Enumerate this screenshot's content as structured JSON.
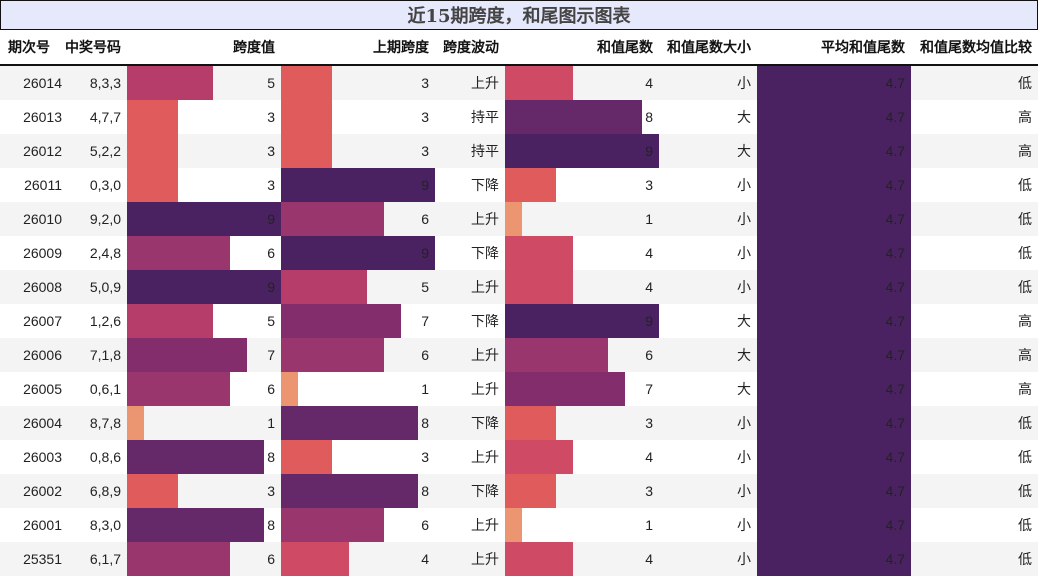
{
  "title": "近15期跨度，和尾图示图表",
  "headers": [
    "期次号",
    "中奖号码",
    "跨度值",
    "上期跨度",
    "跨度波动",
    "和值尾数",
    "和值尾数大小",
    "平均和值尾数",
    "和值尾数均值比较"
  ],
  "bar_max": 9,
  "color_scale": {
    "1": "#eb9670",
    "3": "#e05c5c",
    "4": "#cf4a64",
    "5": "#b63d6a",
    "6": "#9a366e",
    "7": "#832d6d",
    "8": "#65296a",
    "9": "#4b2261"
  },
  "rows": [
    {
      "period": "26014",
      "numbers": "8,3,3",
      "span": 5,
      "prev_span": 3,
      "trend": "上升",
      "tail": 4,
      "tail_size": "小",
      "avg_tail": "4.7",
      "compare": "低"
    },
    {
      "period": "26013",
      "numbers": "4,7,7",
      "span": 3,
      "prev_span": 3,
      "trend": "持平",
      "tail": 8,
      "tail_size": "大",
      "avg_tail": "4.7",
      "compare": "高"
    },
    {
      "period": "26012",
      "numbers": "5,2,2",
      "span": 3,
      "prev_span": 3,
      "trend": "持平",
      "tail": 9,
      "tail_size": "大",
      "avg_tail": "4.7",
      "compare": "高"
    },
    {
      "period": "26011",
      "numbers": "0,3,0",
      "span": 3,
      "prev_span": 9,
      "trend": "下降",
      "tail": 3,
      "tail_size": "小",
      "avg_tail": "4.7",
      "compare": "低"
    },
    {
      "period": "26010",
      "numbers": "9,2,0",
      "span": 9,
      "prev_span": 6,
      "trend": "上升",
      "tail": 1,
      "tail_size": "小",
      "avg_tail": "4.7",
      "compare": "低"
    },
    {
      "period": "26009",
      "numbers": "2,4,8",
      "span": 6,
      "prev_span": 9,
      "trend": "下降",
      "tail": 4,
      "tail_size": "小",
      "avg_tail": "4.7",
      "compare": "低"
    },
    {
      "period": "26008",
      "numbers": "5,0,9",
      "span": 9,
      "prev_span": 5,
      "trend": "上升",
      "tail": 4,
      "tail_size": "小",
      "avg_tail": "4.7",
      "compare": "低"
    },
    {
      "period": "26007",
      "numbers": "1,2,6",
      "span": 5,
      "prev_span": 7,
      "trend": "下降",
      "tail": 9,
      "tail_size": "大",
      "avg_tail": "4.7",
      "compare": "高"
    },
    {
      "period": "26006",
      "numbers": "7,1,8",
      "span": 7,
      "prev_span": 6,
      "trend": "上升",
      "tail": 6,
      "tail_size": "大",
      "avg_tail": "4.7",
      "compare": "高"
    },
    {
      "period": "26005",
      "numbers": "0,6,1",
      "span": 6,
      "prev_span": 1,
      "trend": "上升",
      "tail": 7,
      "tail_size": "大",
      "avg_tail": "4.7",
      "compare": "高"
    },
    {
      "period": "26004",
      "numbers": "8,7,8",
      "span": 1,
      "prev_span": 8,
      "trend": "下降",
      "tail": 3,
      "tail_size": "小",
      "avg_tail": "4.7",
      "compare": "低"
    },
    {
      "period": "26003",
      "numbers": "0,8,6",
      "span": 8,
      "prev_span": 3,
      "trend": "上升",
      "tail": 4,
      "tail_size": "小",
      "avg_tail": "4.7",
      "compare": "低"
    },
    {
      "period": "26002",
      "numbers": "6,8,9",
      "span": 3,
      "prev_span": 8,
      "trend": "下降",
      "tail": 3,
      "tail_size": "小",
      "avg_tail": "4.7",
      "compare": "低"
    },
    {
      "period": "26001",
      "numbers": "8,3,0",
      "span": 8,
      "prev_span": 6,
      "trend": "上升",
      "tail": 1,
      "tail_size": "小",
      "avg_tail": "4.7",
      "compare": "低"
    },
    {
      "period": "25351",
      "numbers": "6,1,7",
      "span": 6,
      "prev_span": 4,
      "trend": "上升",
      "tail": 4,
      "tail_size": "小",
      "avg_tail": "4.7",
      "compare": "低"
    }
  ]
}
